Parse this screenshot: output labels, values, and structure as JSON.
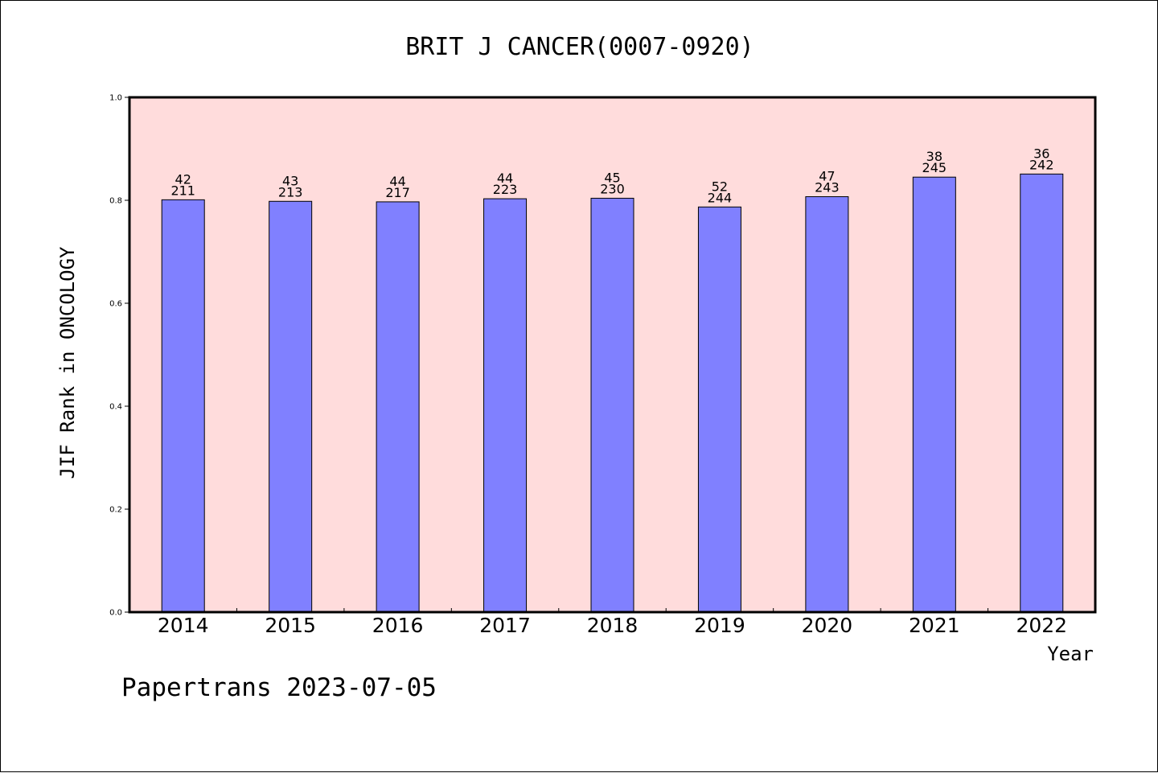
{
  "footer": {
    "text": "Papertrans 2023-07-05"
  },
  "chart_data": {
    "type": "bar",
    "title": "BRIT J CANCER(0007-0920)",
    "xlabel": "Year",
    "ylabel": "JIF Rank in ONCOLOGY",
    "ylim": [
      0,
      1.0
    ],
    "yticks": [
      "0.0",
      "0.2",
      "0.4",
      "0.6",
      "0.8",
      "1.0"
    ],
    "grid": false,
    "categories": [
      "2014",
      "2015",
      "2016",
      "2017",
      "2018",
      "2019",
      "2020",
      "2021",
      "2022"
    ],
    "values": [
      0.801,
      0.798,
      0.797,
      0.803,
      0.804,
      0.787,
      0.807,
      0.845,
      0.851
    ],
    "rank": [
      "42",
      "43",
      "44",
      "44",
      "45",
      "52",
      "47",
      "38",
      "36"
    ],
    "total": [
      "211",
      "213",
      "217",
      "223",
      "230",
      "244",
      "243",
      "245",
      "242"
    ],
    "colors": {
      "bar": "#8080ff",
      "plot_bg": "#ffdcdc",
      "axis": "#000000"
    }
  }
}
